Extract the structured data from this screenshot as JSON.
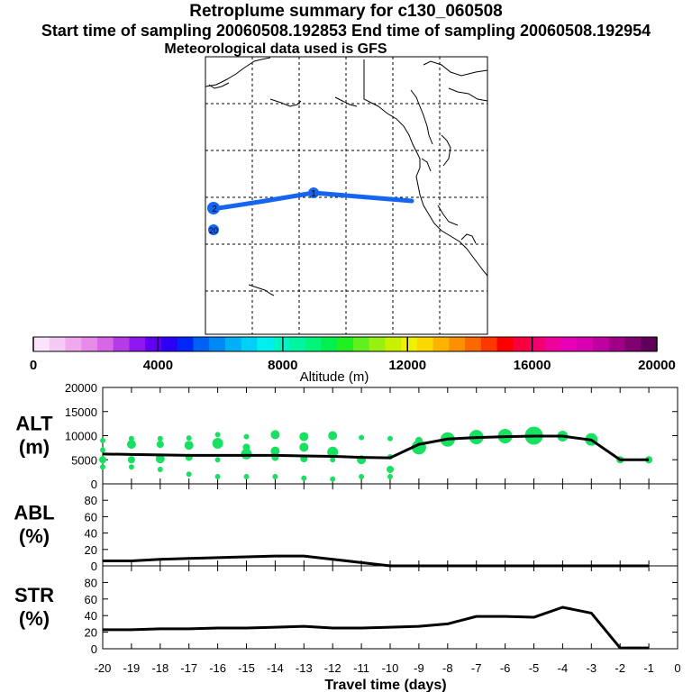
{
  "header": {
    "title": "Retroplume summary for c130_060508",
    "sampling": "Start time of sampling 20060508.192853     End time of sampling 20060508.192954",
    "met": "Meteorological data used is GFS"
  },
  "colors": {
    "trajectory": "#1565f0",
    "scatter": "#18e060",
    "line": "#000000"
  },
  "map": {
    "trajectory_day_labels": [
      "1",
      "2",
      "20"
    ]
  },
  "colorbar": {
    "label": "Altitude (m)",
    "ticks": [
      "0",
      "4000",
      "8000",
      "12000",
      "16000",
      "20000"
    ],
    "range": [
      0,
      20000
    ],
    "colors": [
      "#fbe4fb",
      "#f5c9f5",
      "#efaaef",
      "#e88ae8",
      "#d767e6",
      "#b53ae8",
      "#8f18ef",
      "#6200f3",
      "#2c00f6",
      "#0026f8",
      "#0062f5",
      "#0088f5",
      "#00aff5",
      "#00d0f5",
      "#00f0f0",
      "#00f5c4",
      "#00f5a0",
      "#00f57a",
      "#00f050",
      "#20f020",
      "#60f020",
      "#98f010",
      "#c8f000",
      "#f0f000",
      "#fad800",
      "#fcb400",
      "#fc9000",
      "#fc6800",
      "#fc3800",
      "#fc0000",
      "#f80040",
      "#f40070",
      "#f0009c",
      "#e800b8",
      "#d800b0",
      "#c000a0",
      "#a00088",
      "#800070",
      "#600058"
    ]
  },
  "chart_data": [
    {
      "type": "line",
      "panel": "ALT",
      "ylabel_lines": [
        "ALT",
        "(m)"
      ],
      "ylim": [
        0,
        20000
      ],
      "yticks": [
        "20000",
        "15000",
        "10000",
        "5000",
        "0"
      ],
      "xlim": [
        -20,
        0
      ],
      "x": [
        -20,
        -19,
        -18,
        -17,
        -16,
        -15,
        -14,
        -13,
        -12,
        -11,
        -10,
        -9,
        -8,
        -7,
        -6,
        -5,
        -4,
        -3,
        -2,
        -1
      ],
      "values": [
        6200,
        6100,
        6000,
        5900,
        5900,
        5900,
        5900,
        5800,
        5700,
        5500,
        5400,
        8200,
        9300,
        9600,
        9800,
        9900,
        9900,
        9100,
        5000,
        5000
      ],
      "scatter": [
        {
          "x": -20,
          "y": 9000,
          "s": 3
        },
        {
          "x": -20,
          "y": 7000,
          "s": 3
        },
        {
          "x": -20,
          "y": 5000,
          "s": 4
        },
        {
          "x": -20,
          "y": 3500,
          "s": 3
        },
        {
          "x": -19,
          "y": 9400,
          "s": 3
        },
        {
          "x": -19,
          "y": 8200,
          "s": 5
        },
        {
          "x": -19,
          "y": 5000,
          "s": 4
        },
        {
          "x": -19,
          "y": 3500,
          "s": 3
        },
        {
          "x": -18,
          "y": 9400,
          "s": 3
        },
        {
          "x": -18,
          "y": 8200,
          "s": 4
        },
        {
          "x": -18,
          "y": 5200,
          "s": 5
        },
        {
          "x": -18,
          "y": 3000,
          "s": 3
        },
        {
          "x": -17,
          "y": 9500,
          "s": 3
        },
        {
          "x": -17,
          "y": 8000,
          "s": 5
        },
        {
          "x": -17,
          "y": 5500,
          "s": 4
        },
        {
          "x": -17,
          "y": 2000,
          "s": 3
        },
        {
          "x": -16,
          "y": 10200,
          "s": 3
        },
        {
          "x": -16,
          "y": 8400,
          "s": 6
        },
        {
          "x": -16,
          "y": 5000,
          "s": 3
        },
        {
          "x": -16,
          "y": 1500,
          "s": 3
        },
        {
          "x": -15,
          "y": 9800,
          "s": 3
        },
        {
          "x": -15,
          "y": 7600,
          "s": 4
        },
        {
          "x": -15,
          "y": 6200,
          "s": 6
        },
        {
          "x": -15,
          "y": 1500,
          "s": 3
        },
        {
          "x": -14,
          "y": 10200,
          "s": 5
        },
        {
          "x": -14,
          "y": 6800,
          "s": 5
        },
        {
          "x": -14,
          "y": 5500,
          "s": 4
        },
        {
          "x": -14,
          "y": 1500,
          "s": 3
        },
        {
          "x": -13,
          "y": 9800,
          "s": 5
        },
        {
          "x": -13,
          "y": 7600,
          "s": 5
        },
        {
          "x": -13,
          "y": 5200,
          "s": 4
        },
        {
          "x": -13,
          "y": 1200,
          "s": 3
        },
        {
          "x": -12,
          "y": 10000,
          "s": 5
        },
        {
          "x": -12,
          "y": 6600,
          "s": 6
        },
        {
          "x": -12,
          "y": 5000,
          "s": 3
        },
        {
          "x": -12,
          "y": 1000,
          "s": 3
        },
        {
          "x": -11,
          "y": 9600,
          "s": 3
        },
        {
          "x": -11,
          "y": 5000,
          "s": 5
        },
        {
          "x": -11,
          "y": 1500,
          "s": 3
        },
        {
          "x": -10,
          "y": 9400,
          "s": 3
        },
        {
          "x": -10,
          "y": 5600,
          "s": 3
        },
        {
          "x": -10,
          "y": 3000,
          "s": 4
        },
        {
          "x": -10,
          "y": 1500,
          "s": 3
        },
        {
          "x": -9,
          "y": 7600,
          "s": 8
        },
        {
          "x": -9,
          "y": 9000,
          "s": 4
        },
        {
          "x": -8,
          "y": 9200,
          "s": 8
        },
        {
          "x": -7,
          "y": 9700,
          "s": 8
        },
        {
          "x": -6,
          "y": 9900,
          "s": 8
        },
        {
          "x": -5,
          "y": 10000,
          "s": 10
        },
        {
          "x": -4,
          "y": 9900,
          "s": 6
        },
        {
          "x": -3,
          "y": 9200,
          "s": 7
        },
        {
          "x": -2,
          "y": 5000,
          "s": 4
        },
        {
          "x": -1,
          "y": 5000,
          "s": 4
        }
      ]
    },
    {
      "type": "line",
      "panel": "ABL",
      "ylabel_lines": [
        "ABL",
        "(%)"
      ],
      "ylim": [
        0,
        100
      ],
      "yticks": [
        "80",
        "60",
        "40",
        "20",
        "0"
      ],
      "xlim": [
        -20,
        0
      ],
      "x": [
        -20,
        -19,
        -18,
        -17,
        -16,
        -15,
        -14,
        -13,
        -12,
        -11,
        -10,
        -9,
        -8,
        -7,
        -6,
        -5,
        -4,
        -3,
        -2,
        -1
      ],
      "values": [
        6,
        6,
        8,
        9,
        10,
        11,
        12,
        12,
        8,
        4,
        0,
        0,
        0,
        0,
        0,
        0,
        0,
        0,
        0,
        0
      ]
    },
    {
      "type": "line",
      "panel": "STR",
      "ylabel_lines": [
        "STR",
        "(%)"
      ],
      "ylim": [
        0,
        100
      ],
      "yticks": [
        "80",
        "60",
        "40",
        "20",
        "0"
      ],
      "xlim": [
        -20,
        0
      ],
      "x": [
        -20,
        -19,
        -18,
        -17,
        -16,
        -15,
        -14,
        -13,
        -12,
        -11,
        -10,
        -9,
        -8,
        -7,
        -6,
        -5,
        -4,
        -3,
        -2,
        -1
      ],
      "values": [
        23,
        23,
        24,
        24,
        25,
        25,
        26,
        27,
        25,
        25,
        26,
        27,
        30,
        39,
        39,
        38,
        50,
        43,
        1,
        1
      ],
      "xlabel": "Travel time (days)",
      "xticks": [
        "-20",
        "-19",
        "-18",
        "-17",
        "-16",
        "-15",
        "-14",
        "-13",
        "-12",
        "-11",
        "-10",
        "-9",
        "-8",
        "-7",
        "-6",
        "-5",
        "-4",
        "-3",
        "-2",
        "-1",
        "0"
      ]
    }
  ]
}
